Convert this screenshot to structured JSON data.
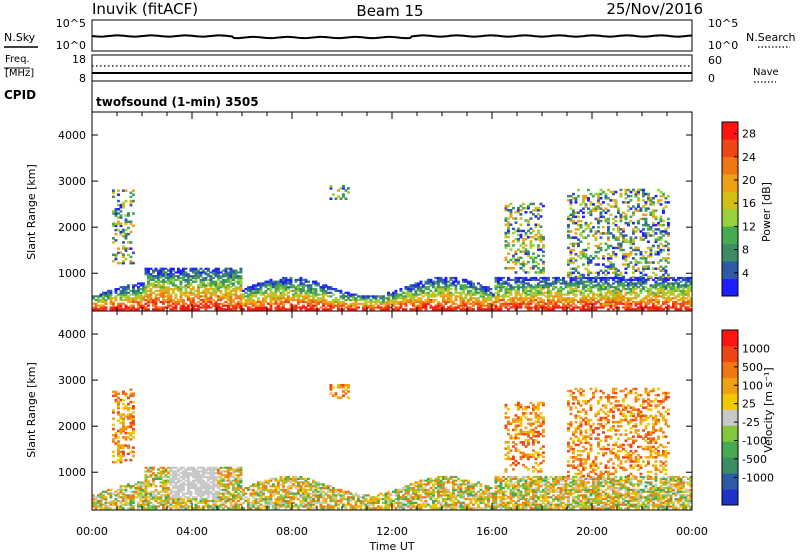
{
  "header": {
    "site": "Inuvik (fitACF)",
    "beam": "Beam 15",
    "date": "25/Nov/2016"
  },
  "noise_panel": {
    "left_label": "N.Sky",
    "right_label": "N.Search",
    "left_ticks": [
      "10^5",
      "10^0"
    ],
    "right_ticks": [
      "10^5",
      "10^0"
    ]
  },
  "freq_panel": {
    "left_label_line1": "Freq.",
    "left_label_line2": "[MHz]",
    "right_label": "Nave",
    "left_ticks": [
      "18",
      "8"
    ],
    "right_ticks": [
      "60",
      "0"
    ]
  },
  "cpid_panel": {
    "label": "CPID",
    "program": "twofsound (1-min) 3505"
  },
  "chart_data": [
    {
      "type": "heatmap",
      "name": "power",
      "ylabel": "Slant Range [km]",
      "ylim": [
        180,
        4500
      ],
      "yticks": [
        "1000",
        "2000",
        "3000",
        "4000"
      ],
      "xlabel": "Time UT",
      "xticks": [
        "00:00",
        "04:00",
        "08:00",
        "12:00",
        "16:00",
        "20:00",
        "00:00"
      ],
      "colorbar_label": "Power [dB]",
      "colorbar_ticks": [
        "4",
        "8",
        "12",
        "16",
        "20",
        "24",
        "28"
      ],
      "colorbar_range": [
        0,
        30
      ],
      "colors": [
        "#1e1eff",
        "#2e5aa8",
        "#3c8c64",
        "#46aa50",
        "#96d23c",
        "#d2be14",
        "#f0a014",
        "#f07814",
        "#f04614",
        "#ff1414"
      ]
    },
    {
      "type": "heatmap",
      "name": "velocity",
      "ylabel": "Slant Range [km]",
      "ylim": [
        180,
        4500
      ],
      "yticks": [
        "1000",
        "2000",
        "3000",
        "4000"
      ],
      "xlabel": "Time UT",
      "xticks": [
        "00:00",
        "04:00",
        "08:00",
        "12:00",
        "16:00",
        "20:00",
        "00:00"
      ],
      "colorbar_label": "Velocity [m s⁻¹]",
      "colorbar_ticks": [
        "1000",
        "500",
        "100",
        "25",
        "-25",
        "-100",
        "-500",
        "-1000"
      ],
      "colors": [
        "#1e32c8",
        "#2e5aa8",
        "#3c8c64",
        "#46aa50",
        "#82c83c",
        "#c8c8c8",
        "#f0c800",
        "#f0a014",
        "#f07814",
        "#f04614",
        "#ff1414"
      ]
    }
  ]
}
